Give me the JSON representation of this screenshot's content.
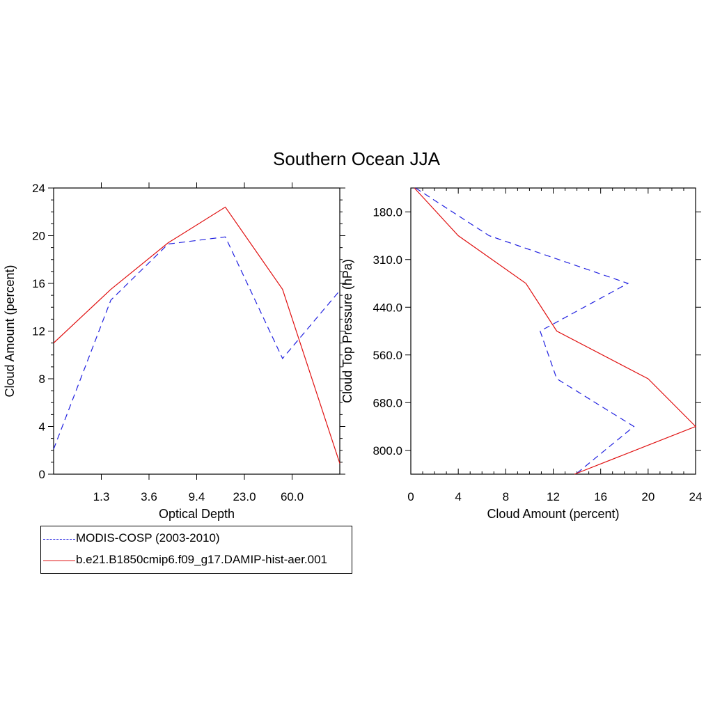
{
  "title": "Southern Ocean JJA",
  "colors": {
    "obs": "#2020e0",
    "model": "#e01010",
    "axis": "#000000"
  },
  "legend": {
    "obs_label": "MODIS-COSP (2003-2010)",
    "model_label": "b.e21.B1850cmip6.f09_g17.DAMIP-hist-aer.001"
  },
  "chart_data": [
    {
      "type": "line",
      "xlabel": "Optical Depth",
      "ylabel": "Cloud Amount (percent)",
      "x_tick_labels": [
        "1.3",
        "3.6",
        "9.4",
        "23.0",
        "60.0"
      ],
      "x_category_positions": [
        0,
        1,
        2,
        3,
        4,
        5,
        6
      ],
      "ylim": [
        0,
        24
      ],
      "y_ticks": [
        0,
        4,
        8,
        12,
        16,
        20,
        24
      ],
      "series": [
        {
          "name": "MODIS-COSP (2003-2010)",
          "style": "dashed",
          "values": [
            2.1,
            14.6,
            19.3,
            19.9,
            9.7,
            15.4
          ]
        },
        {
          "name": "b.e21.B1850cmip6.f09_g17.DAMIP-hist-aer.001",
          "style": "solid",
          "values": [
            11.0,
            15.5,
            19.4,
            22.4,
            15.5,
            0.9
          ]
        }
      ],
      "series_x": [
        0,
        1,
        2,
        3,
        4,
        5
      ]
    },
    {
      "type": "line",
      "xlabel": "Cloud Amount (percent)",
      "ylabel": "Cloud Top Pressure (hPa)",
      "xlim": [
        0,
        24
      ],
      "x_ticks": [
        0,
        4,
        8,
        12,
        16,
        20,
        24
      ],
      "y_tick_labels": [
        "180.0",
        "310.0",
        "440.0",
        "560.0",
        "680.0",
        "800.0"
      ],
      "ylim_level_index": [
        0,
        6
      ],
      "y_inverted": true,
      "series": [
        {
          "name": "MODIS-COSP (2003-2010)",
          "style": "dashed",
          "values": [
            0.4,
            6.6,
            18.3,
            10.9,
            12.3,
            18.8,
            13.9
          ]
        },
        {
          "name": "b.e21.B1850cmip6.f09_g17.DAMIP-hist-aer.001",
          "style": "solid",
          "values": [
            0.3,
            4.0,
            9.7,
            12.3,
            20.0,
            24.0,
            13.8
          ]
        }
      ],
      "series_level_index": [
        0,
        1,
        2,
        3,
        4,
        5,
        6
      ]
    }
  ]
}
